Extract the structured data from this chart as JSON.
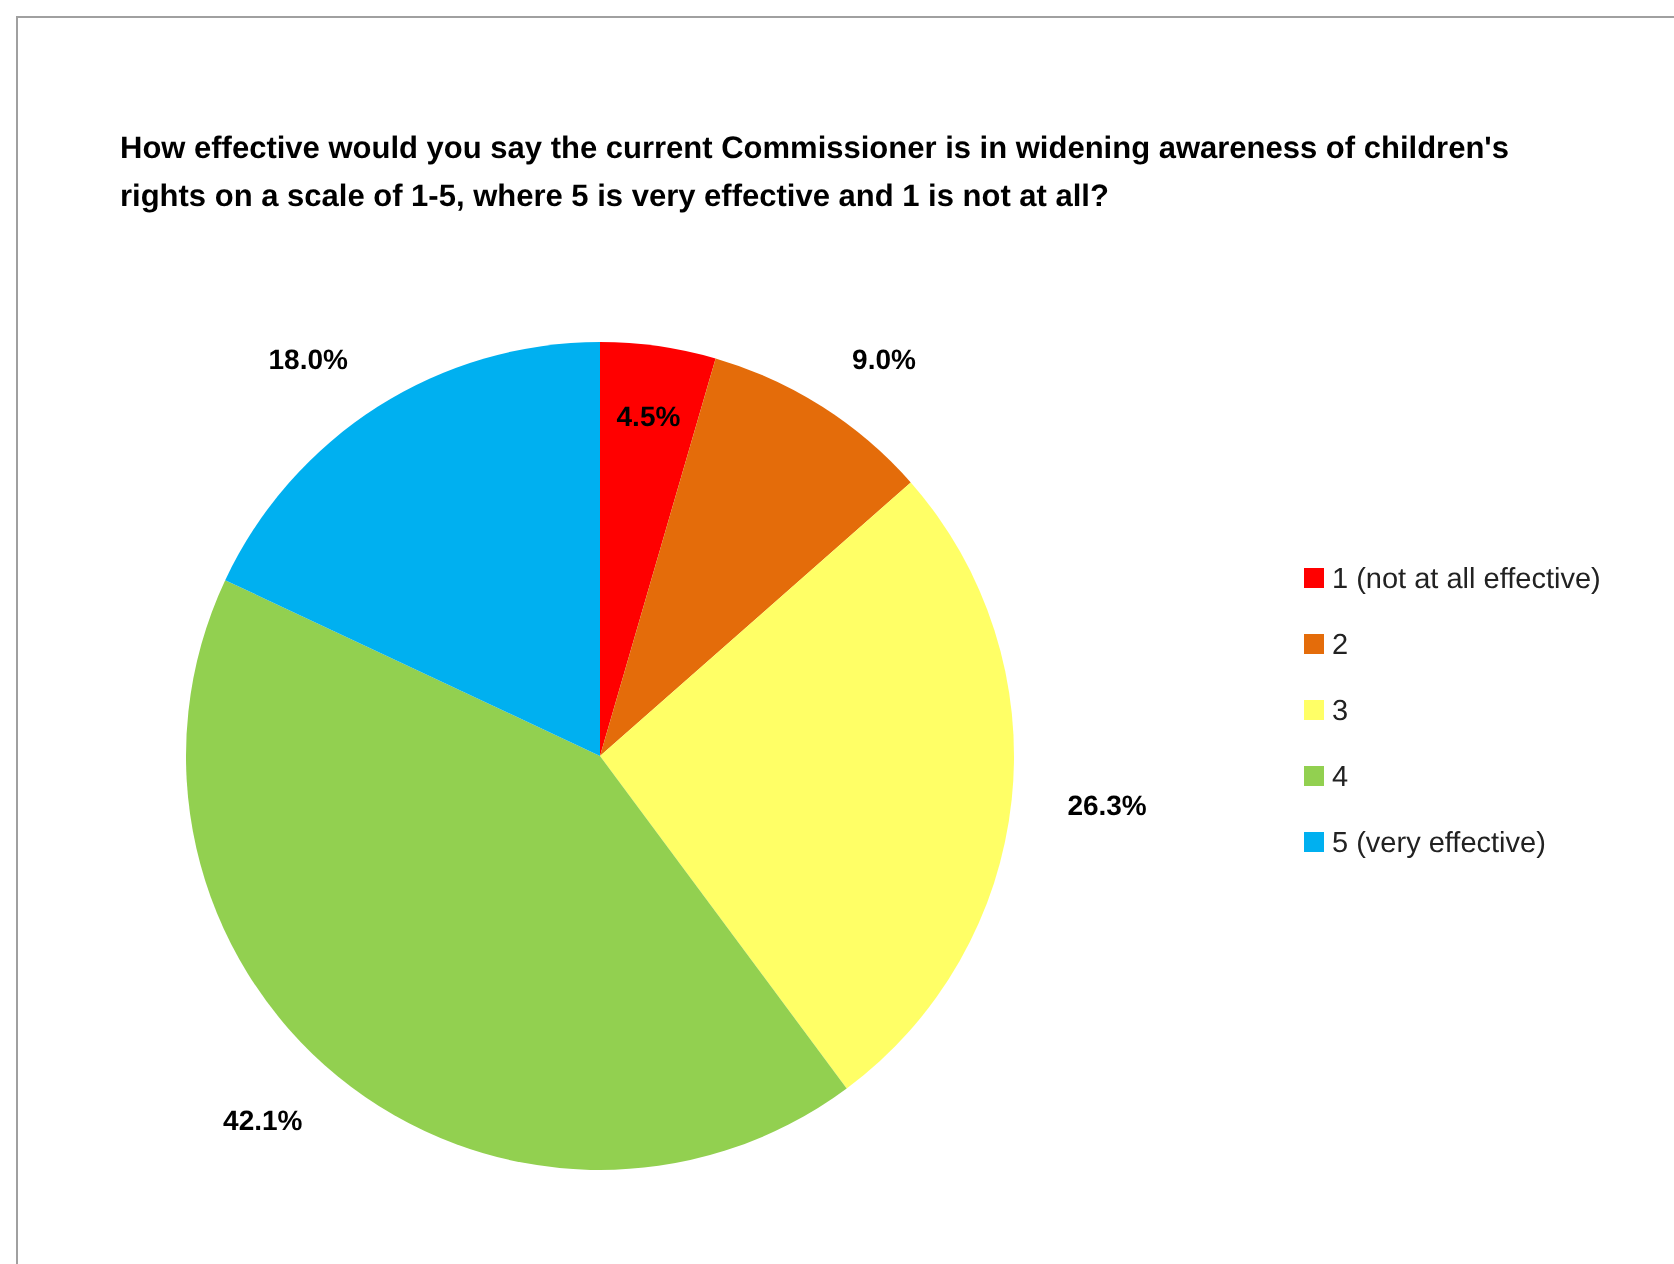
{
  "chart_data": {
    "type": "pie",
    "title": "How effective would you say the current Commissioner is in widening awareness of children's rights on a scale of 1-5, where 5 is very effective and 1 is not at all?",
    "categories": [
      "1 (not at all effective)",
      "2",
      "3",
      "4",
      "5 (very effective)"
    ],
    "values": [
      4.5,
      9.0,
      26.3,
      42.1,
      18.0
    ],
    "colors": [
      "#ff0000",
      "#e46c0a",
      "#ffff66",
      "#92d050",
      "#00b0f0"
    ],
    "value_labels": [
      "4.5%",
      "9.0%",
      "26.3%",
      "42.1%",
      "18.0%"
    ],
    "legend": "right"
  }
}
